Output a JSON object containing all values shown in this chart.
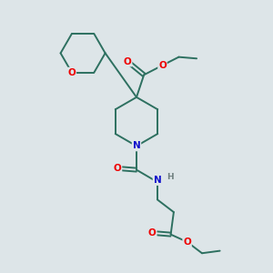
{
  "bg_color": "#dde5e8",
  "bond_color": "#2d7060",
  "O_color": "#ee0000",
  "N_color": "#1010cc",
  "H_color": "#708080",
  "font_size": 7.5,
  "line_width": 1.4,
  "figsize": [
    3.0,
    3.0
  ],
  "dpi": 100,
  "xlim": [
    1.5,
    8.5
  ],
  "ylim": [
    0.5,
    9.5
  ]
}
